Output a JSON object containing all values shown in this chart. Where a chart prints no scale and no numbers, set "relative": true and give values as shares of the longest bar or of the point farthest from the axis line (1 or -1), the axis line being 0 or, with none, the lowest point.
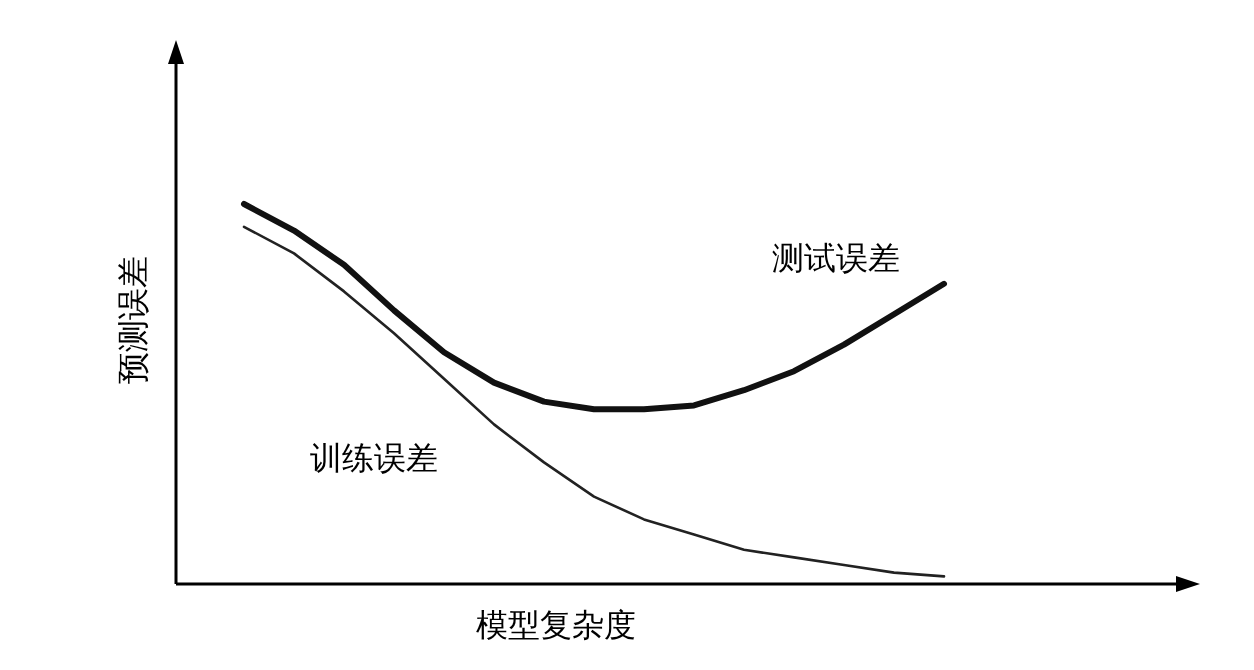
{
  "chart_data": {
    "type": "line",
    "relative": true,
    "xlabel": "模型复杂度",
    "ylabel": "预测误差",
    "categories": [
      null,
      null,
      null,
      null,
      null,
      null,
      null,
      null,
      null,
      null,
      null,
      null,
      null,
      null,
      null
    ],
    "series": [
      {
        "name": "测试误差",
        "color": "#111111",
        "values": [
          1,
          0.93,
          0.84,
          0.72,
          0.61,
          0.53,
          0.48,
          0.46,
          0.46,
          0.47,
          0.51,
          0.56,
          0.63,
          0.71,
          0.79
        ]
      },
      {
        "name": "训练误差",
        "color": "#222222",
        "values": [
          0.94,
          0.87,
          0.77,
          0.66,
          0.54,
          0.42,
          0.32,
          0.23,
          0.17,
          0.13,
          0.09,
          0.07,
          0.05,
          0.03,
          0.02
        ]
      }
    ],
    "marker": "none",
    "line_style": "solid"
  }
}
